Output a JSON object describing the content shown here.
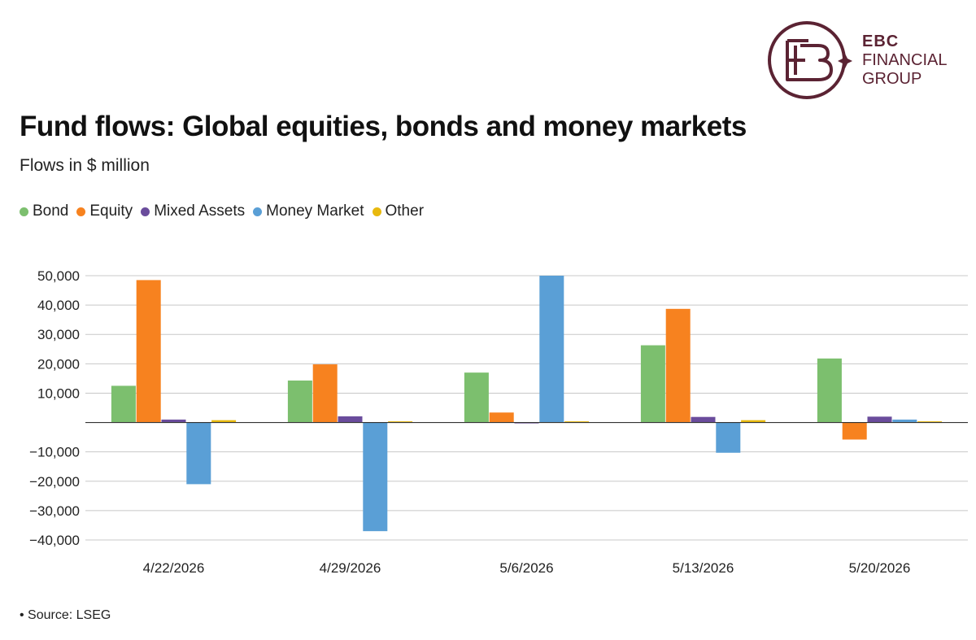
{
  "brand": {
    "logo_lines": [
      "EBC",
      "FINANCIAL",
      "GROUP"
    ],
    "color": "#5b2333"
  },
  "chart_data": {
    "type": "bar",
    "title": "Fund flows: Global equities, bonds and money markets",
    "subtitle": "Flows in $ million",
    "categories": [
      "4/22/2026",
      "4/29/2026",
      "5/6/2026",
      "5/13/2026",
      "5/20/2026"
    ],
    "series": [
      {
        "name": "Bond",
        "color": "#7cbf6e",
        "values": [
          12500,
          14300,
          17000,
          26300,
          21800
        ]
      },
      {
        "name": "Equity",
        "color": "#f7821f",
        "values": [
          48500,
          19800,
          3400,
          38700,
          -5800
        ]
      },
      {
        "name": "Mixed Assets",
        "color": "#6a4c9c",
        "values": [
          1000,
          2100,
          -300,
          1900,
          2000
        ]
      },
      {
        "name": "Money Market",
        "color": "#5a9fd6",
        "values": [
          -21000,
          -37000,
          50000,
          -10300,
          1000
        ]
      },
      {
        "name": "Other",
        "color": "#e8b90e",
        "values": [
          800,
          400,
          400,
          800,
          400
        ]
      }
    ],
    "ylim": [
      -40000,
      50000
    ],
    "yticks": [
      50000,
      40000,
      30000,
      20000,
      10000,
      -10000,
      -20000,
      -30000,
      -40000
    ],
    "ytick_labels": [
      "50,000",
      "40,000",
      "30,000",
      "20,000",
      "10,000",
      "−10,000",
      "−20,000",
      "−30,000",
      "−40,000"
    ],
    "grid": true,
    "legend": "top-left",
    "source": "• Source: LSEG"
  }
}
